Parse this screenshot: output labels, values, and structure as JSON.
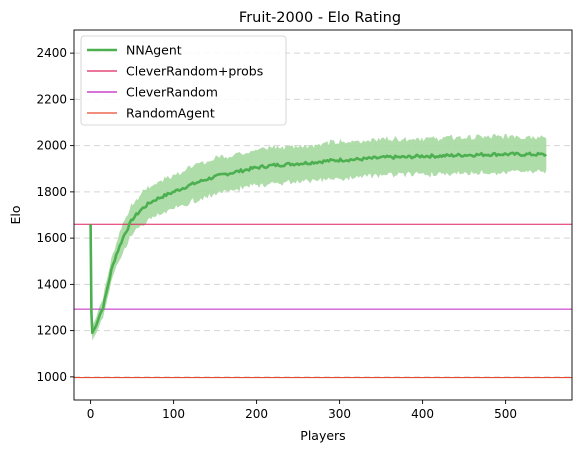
{
  "chart_data": {
    "type": "line",
    "title": "Fruit-2000 - Elo Rating",
    "xlabel": "Players",
    "ylabel": "Elo",
    "xlim": [
      -20,
      580
    ],
    "ylim": [
      900,
      2500
    ],
    "xticks": [
      0,
      100,
      200,
      300,
      400,
      500
    ],
    "yticks": [
      1000,
      1200,
      1400,
      1600,
      1800,
      2000,
      2200,
      2400
    ],
    "grid": "horizontal dashed",
    "legend_position": "top-left",
    "series": [
      {
        "name": "NNAgent",
        "kind": "line-with-band",
        "color": "#4caf50",
        "band_color": "#a6d9a0",
        "points": [
          [
            0,
            1660
          ],
          [
            1,
            1280
          ],
          [
            2,
            1190
          ],
          [
            5,
            1210
          ],
          [
            10,
            1260
          ],
          [
            15,
            1300
          ],
          [
            20,
            1380
          ],
          [
            25,
            1460
          ],
          [
            30,
            1520
          ],
          [
            40,
            1610
          ],
          [
            50,
            1680
          ],
          [
            60,
            1720
          ],
          [
            70,
            1750
          ],
          [
            80,
            1770
          ],
          [
            90,
            1785
          ],
          [
            100,
            1800
          ],
          [
            120,
            1830
          ],
          [
            140,
            1855
          ],
          [
            160,
            1875
          ],
          [
            180,
            1890
          ],
          [
            200,
            1905
          ],
          [
            220,
            1915
          ],
          [
            240,
            1920
          ],
          [
            260,
            1925
          ],
          [
            280,
            1932
          ],
          [
            300,
            1938
          ],
          [
            320,
            1940
          ],
          [
            340,
            1945
          ],
          [
            360,
            1950
          ],
          [
            380,
            1950
          ],
          [
            400,
            1955
          ],
          [
            420,
            1955
          ],
          [
            440,
            1958
          ],
          [
            460,
            1960
          ],
          [
            480,
            1962
          ],
          [
            500,
            1963
          ],
          [
            520,
            1962
          ],
          [
            540,
            1962
          ],
          [
            550,
            1960
          ]
        ],
        "band_halfwidth": [
          [
            0,
            20
          ],
          [
            2,
            30
          ],
          [
            10,
            40
          ],
          [
            20,
            45
          ],
          [
            40,
            60
          ],
          [
            60,
            70
          ],
          [
            100,
            75
          ],
          [
            150,
            78
          ],
          [
            200,
            78
          ],
          [
            300,
            78
          ],
          [
            400,
            78
          ],
          [
            500,
            78
          ],
          [
            550,
            78
          ]
        ]
      },
      {
        "name": "CleverRandom+probs",
        "kind": "hline",
        "value": 1660,
        "color": "#e0245e"
      },
      {
        "name": "CleverRandom",
        "kind": "hline",
        "value": 1293,
        "color": "#c020c0"
      },
      {
        "name": "RandomAgent",
        "kind": "hline",
        "value": 997,
        "color": "#e8492f"
      }
    ]
  }
}
